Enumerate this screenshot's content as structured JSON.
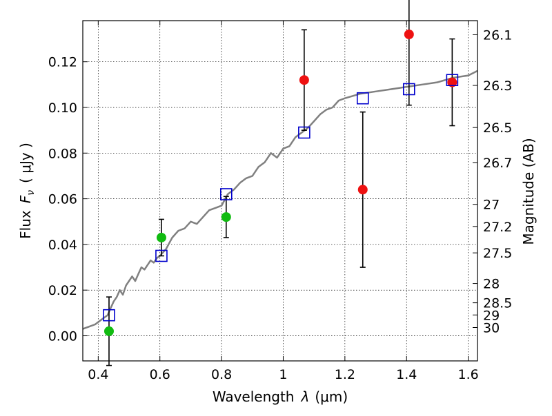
{
  "chart_data": {
    "type": "scatter",
    "title": "",
    "xlabel_text": "Wavelength",
    "xlabel_lambda": "λ",
    "xlabel_unit": "(μm)",
    "ylabel_text": "Flux",
    "ylabel_F": "F",
    "ylabel_nu": "ν",
    "ylabel_unit": "( μJy )",
    "y2label": "Magnitude (AB)",
    "xlim": [
      0.35,
      1.63
    ],
    "ylim": [
      -0.011,
      0.138
    ],
    "xticks": [
      0.4,
      0.6,
      0.8,
      1.0,
      1.2,
      1.4,
      1.6
    ],
    "xtick_labels": [
      "0.4",
      "0.6",
      "0.8",
      "1",
      "1.2",
      "1.4",
      "1.6"
    ],
    "yticks": [
      0.0,
      0.02,
      0.04,
      0.06,
      0.08,
      0.1,
      0.12
    ],
    "ytick_labels": [
      "0.00",
      "0.02",
      "0.04",
      "0.06",
      "0.08",
      "0.10",
      "0.12"
    ],
    "mag_ticks": [
      "26.1",
      "26.3",
      "26.5",
      "26.7",
      "27",
      "27.2",
      "27.5",
      "28",
      "28.5",
      "29",
      "30"
    ],
    "grid": true,
    "colors": {
      "model": "#808080",
      "green": "#11bb11",
      "red": "#ee1111",
      "box": "#0000cc"
    },
    "model_spectrum": {
      "x": [
        0.35,
        0.37,
        0.39,
        0.4,
        0.41,
        0.42,
        0.43,
        0.44,
        0.45,
        0.46,
        0.47,
        0.48,
        0.49,
        0.5,
        0.51,
        0.52,
        0.53,
        0.54,
        0.55,
        0.56,
        0.57,
        0.58,
        0.59,
        0.6,
        0.62,
        0.64,
        0.66,
        0.68,
        0.7,
        0.72,
        0.74,
        0.76,
        0.78,
        0.8,
        0.82,
        0.84,
        0.86,
        0.88,
        0.9,
        0.92,
        0.94,
        0.96,
        0.98,
        1.0,
        1.02,
        1.04,
        1.06,
        1.08,
        1.1,
        1.12,
        1.14,
        1.16,
        1.18,
        1.2,
        1.25,
        1.3,
        1.35,
        1.4,
        1.45,
        1.5,
        1.55,
        1.6,
        1.63
      ],
      "y": [
        0.003,
        0.004,
        0.005,
        0.006,
        0.007,
        0.008,
        0.009,
        0.012,
        0.015,
        0.017,
        0.02,
        0.018,
        0.022,
        0.024,
        0.026,
        0.024,
        0.027,
        0.03,
        0.029,
        0.031,
        0.033,
        0.032,
        0.034,
        0.035,
        0.038,
        0.043,
        0.046,
        0.047,
        0.05,
        0.049,
        0.052,
        0.055,
        0.056,
        0.057,
        0.062,
        0.064,
        0.067,
        0.069,
        0.07,
        0.074,
        0.076,
        0.08,
        0.078,
        0.082,
        0.083,
        0.087,
        0.089,
        0.091,
        0.094,
        0.097,
        0.099,
        0.1,
        0.103,
        0.104,
        0.106,
        0.107,
        0.108,
        0.109,
        0.11,
        0.111,
        0.113,
        0.114,
        0.116
      ]
    },
    "series": [
      {
        "name": "green points",
        "color": "green",
        "x": [
          0.435,
          0.605,
          0.815
        ],
        "y": [
          0.002,
          0.043,
          0.052
        ],
        "err": [
          0.015,
          0.008,
          0.009
        ]
      },
      {
        "name": "red points",
        "color": "red",
        "x": [
          1.068,
          1.258,
          1.408,
          1.548
        ],
        "y": [
          0.112,
          0.064,
          0.132,
          0.111
        ],
        "err": [
          0.022,
          0.034,
          0.031,
          0.019
        ]
      },
      {
        "name": "model boxes",
        "color": "box",
        "x": [
          0.435,
          0.605,
          0.815,
          1.068,
          1.258,
          1.408,
          1.548
        ],
        "y": [
          0.009,
          0.035,
          0.062,
          0.089,
          0.104,
          0.108,
          0.112
        ]
      }
    ]
  }
}
